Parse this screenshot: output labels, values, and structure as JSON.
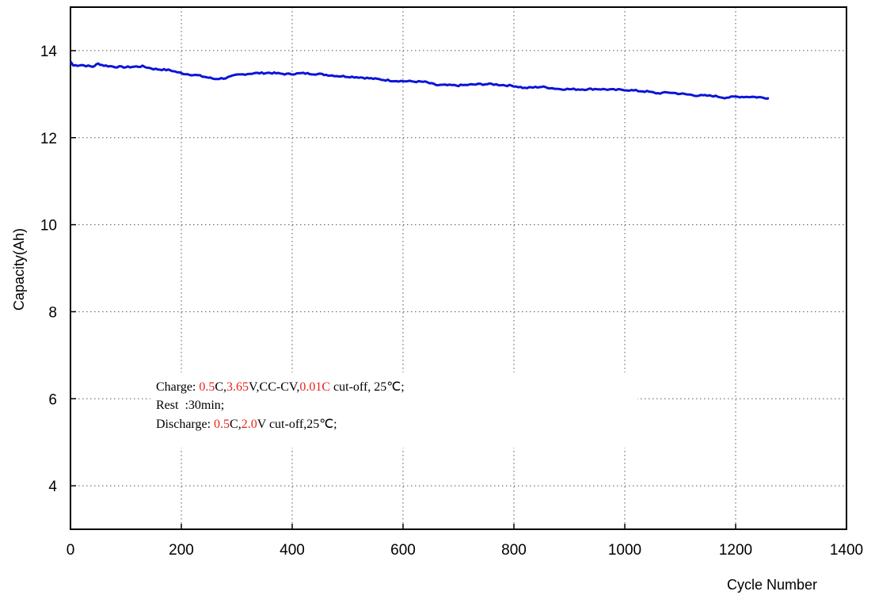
{
  "chart_data": {
    "type": "line",
    "xlabel": "Cycle Number",
    "ylabel": "Capacity(Ah)",
    "xlim": [
      0,
      1400
    ],
    "ylim": [
      3,
      15
    ],
    "x_ticks": [
      "0",
      "200",
      "400",
      "600",
      "800",
      "1000",
      "1200",
      "1400"
    ],
    "y_ticks": [
      "4",
      "6",
      "8",
      "10",
      "12",
      "14"
    ],
    "grid": true,
    "series": [
      {
        "color": "#0a14d8",
        "points": [
          [
            0,
            13.75
          ],
          [
            5,
            13.66
          ],
          [
            20,
            13.67
          ],
          [
            40,
            13.63
          ],
          [
            50,
            13.7
          ],
          [
            60,
            13.66
          ],
          [
            80,
            13.63
          ],
          [
            100,
            13.62
          ],
          [
            130,
            13.64
          ],
          [
            150,
            13.58
          ],
          [
            180,
            13.55
          ],
          [
            200,
            13.48
          ],
          [
            230,
            13.43
          ],
          [
            260,
            13.35
          ],
          [
            280,
            13.37
          ],
          [
            300,
            13.44
          ],
          [
            330,
            13.48
          ],
          [
            360,
            13.49
          ],
          [
            390,
            13.46
          ],
          [
            420,
            13.48
          ],
          [
            450,
            13.46
          ],
          [
            480,
            13.42
          ],
          [
            520,
            13.39
          ],
          [
            550,
            13.35
          ],
          [
            580,
            13.31
          ],
          [
            600,
            13.3
          ],
          [
            640,
            13.28
          ],
          [
            660,
            13.21
          ],
          [
            700,
            13.2
          ],
          [
            740,
            13.23
          ],
          [
            760,
            13.23
          ],
          [
            800,
            13.19
          ],
          [
            820,
            13.14
          ],
          [
            850,
            13.17
          ],
          [
            880,
            13.12
          ],
          [
            920,
            13.11
          ],
          [
            950,
            13.12
          ],
          [
            980,
            13.1
          ],
          [
            1000,
            13.1
          ],
          [
            1040,
            13.06
          ],
          [
            1060,
            13.02
          ],
          [
            1080,
            13.04
          ],
          [
            1100,
            13.01
          ],
          [
            1130,
            12.97
          ],
          [
            1160,
            12.96
          ],
          [
            1180,
            12.92
          ],
          [
            1200,
            12.94
          ],
          [
            1230,
            12.94
          ],
          [
            1260,
            12.91
          ]
        ]
      }
    ],
    "annotations": {
      "charge": {
        "label": "Charge:",
        "rate": "0.5",
        "rate_unit": "C,",
        "voltage": "3.65",
        "voltage_unit": "V,CC-CV,",
        "cutoff": "0.01C",
        "cutoff_suffix": " cut-off, 25℃;"
      },
      "rest": {
        "text": "Rest  :30min;"
      },
      "discharge": {
        "label": "Discharge:",
        "rate": "0.5",
        "rate_unit": "C,",
        "voltage": "2.0",
        "voltage_suffix": "V cut-off,25℃;"
      }
    },
    "colors": {
      "series": "#0a14d8",
      "highlight": "#e8221b"
    }
  }
}
